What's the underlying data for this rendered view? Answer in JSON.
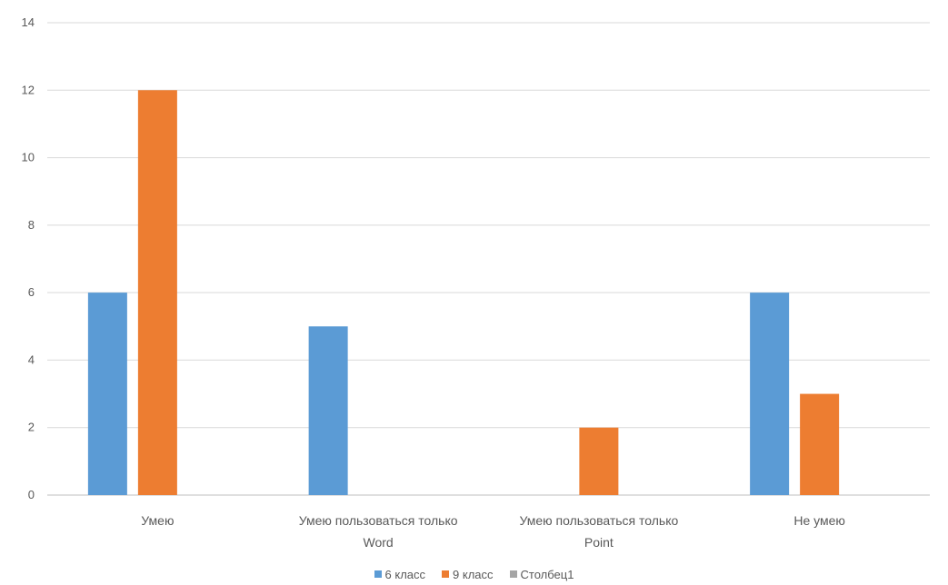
{
  "chart_data": {
    "type": "bar",
    "categories": [
      [
        "Умею"
      ],
      [
        "Умею пользоваться только",
        "Word"
      ],
      [
        "Умею пользоваться только",
        "Point"
      ],
      [
        "Не умею"
      ]
    ],
    "series": [
      {
        "name": "6 класс",
        "color": "#5b9bd5",
        "values": [
          6,
          5,
          0,
          6
        ]
      },
      {
        "name": "9 класс",
        "color": "#ed7d31",
        "values": [
          12,
          0,
          2,
          3
        ]
      },
      {
        "name": "Столбец1",
        "color": "#a5a5a5",
        "values": [
          null,
          null,
          null,
          null
        ]
      }
    ],
    "ylim": [
      0,
      14
    ],
    "yticks": [
      0,
      2,
      4,
      6,
      8,
      10,
      12,
      14
    ],
    "grid": true,
    "legend_position": "bottom"
  }
}
